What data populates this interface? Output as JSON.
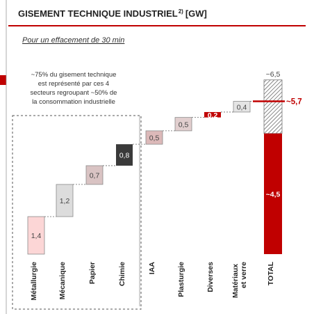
{
  "chart_data": {
    "type": "waterfall",
    "title": "GISEMENT TECHNIQUE INDUSTRIEL",
    "title_note": "2)",
    "title_unit": "[GW]",
    "subtitle": "Pour un effacement de 30 min",
    "annotation": [
      "~75% du gisement technique",
      "est représenté par ces 4",
      "secteurs regroupant ~50% de",
      "la consommation industrielle"
    ],
    "categories": [
      "Métallurgie",
      "Mécanique",
      "Papier",
      "Chimie",
      "IAA",
      "Plasturgie",
      "Diverses",
      "Matériaux et verre"
    ],
    "values": [
      1.4,
      1.2,
      0.7,
      0.8,
      0.5,
      0.5,
      0.2,
      0.4
    ],
    "value_labels": [
      "1,4",
      "1,2",
      "0,7",
      "0,8",
      "0,5",
      "0,5",
      "0,2",
      "0,4"
    ],
    "colors": [
      "#fcd6d6",
      "#dcdcdc",
      "#d9c3c3",
      "#3a3a3a",
      "#dcb9b9",
      "#e1cece",
      "#c00000",
      "#e4e4e4"
    ],
    "total": {
      "label": "TOTAL",
      "value": 4.5,
      "value_label": "~4,5",
      "color": "#c00000",
      "high": 6.5,
      "high_label": "~6,5",
      "marker": 5.7,
      "marker_label": "~5,7"
    }
  }
}
